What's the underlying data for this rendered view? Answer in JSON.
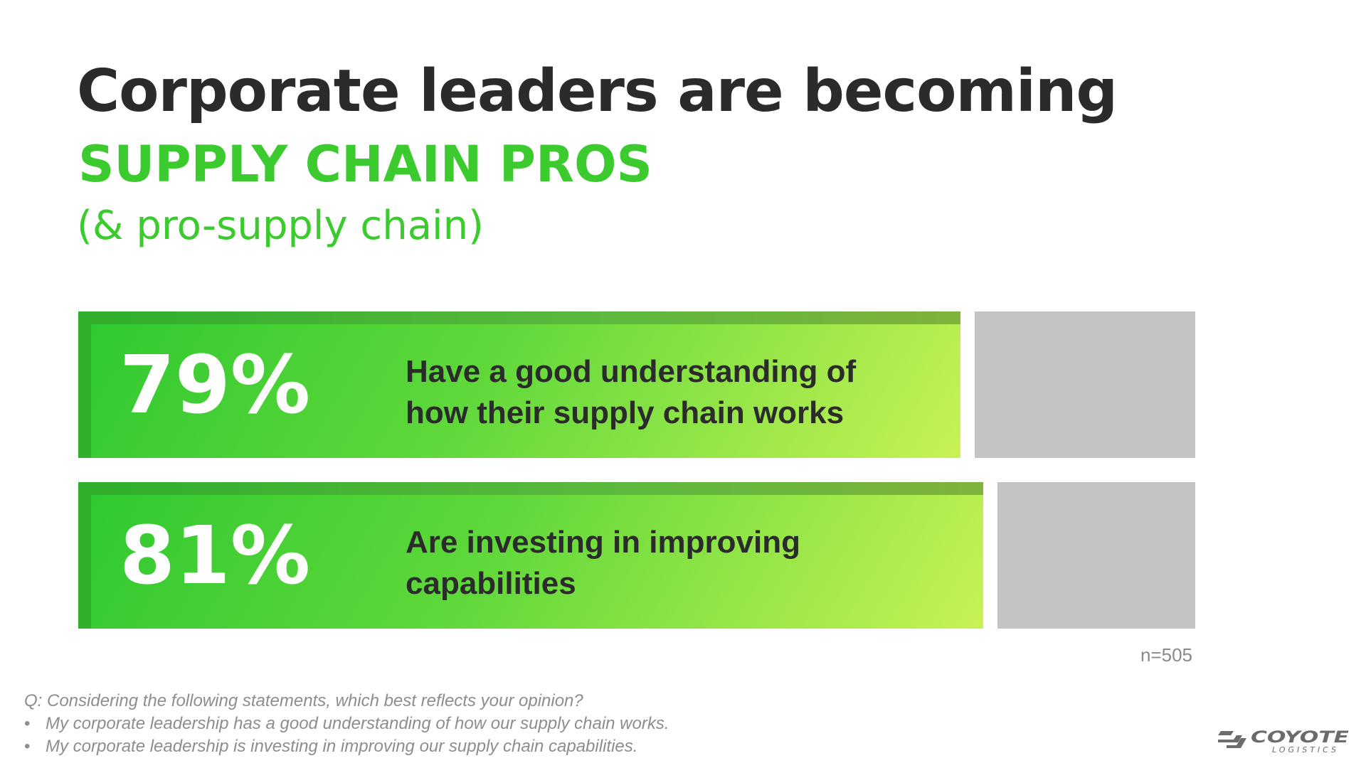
{
  "title": {
    "line1": "Corporate leaders are becoming",
    "line2": "SUPPLY CHAIN PROS",
    "line3": "(& pro-supply chain)"
  },
  "colors": {
    "accent_green": "#3ccb2f",
    "bar_remainder": "#c4c4c4",
    "text_dark": "#2b2b2b"
  },
  "chart_data": {
    "type": "bar",
    "orientation": "horizontal",
    "ylim": [
      0,
      100
    ],
    "bars": [
      {
        "value": 79,
        "label_value": "79%",
        "label": "Have a good understanding of how their supply chain works"
      },
      {
        "value": 81,
        "label_value": "81%",
        "label": "Are investing in improving capabilities"
      }
    ],
    "sample_size": "n=505"
  },
  "footnote": {
    "question": "Q: Considering the following statements, which best reflects your opinion?",
    "bullets": [
      "My corporate leadership has a good understanding of how our supply chain works.",
      "My corporate leadership is investing in improving our supply chain capabilities."
    ],
    "bullet_glyph": "•"
  },
  "logo": {
    "name": "COYOTE",
    "sub": "LOGISTICS",
    "icon": "coyote-chevron-icon"
  }
}
